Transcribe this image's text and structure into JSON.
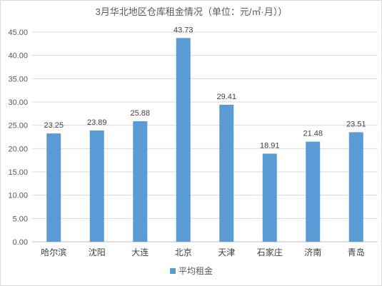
{
  "chart_data": {
    "type": "bar",
    "title": "3月华北地区仓库租金情况（单位：元/㎡·月））",
    "categories": [
      "哈尔滨",
      "沈阳",
      "大连",
      "北京",
      "天津",
      "石家庄",
      "济南",
      "青岛"
    ],
    "series": [
      {
        "name": "平均租金",
        "values": [
          23.25,
          23.89,
          25.88,
          43.73,
          29.41,
          18.91,
          21.48,
          23.51
        ],
        "labels": [
          "23.25",
          "23.89",
          "25.88",
          "43.73",
          "29.41",
          "18.91",
          "21.48",
          "23.51"
        ],
        "color": "#5b9bd5"
      }
    ],
    "ylim": [
      0,
      45
    ],
    "yticks": [
      "0.00",
      "5.00",
      "10.00",
      "15.00",
      "20.00",
      "25.00",
      "30.00",
      "35.00",
      "40.00",
      "45.00"
    ],
    "ytick_values": [
      0,
      5,
      10,
      15,
      20,
      25,
      30,
      35,
      40,
      45
    ],
    "grid": true,
    "legend_position": "bottom",
    "xlabel": "",
    "ylabel": ""
  }
}
